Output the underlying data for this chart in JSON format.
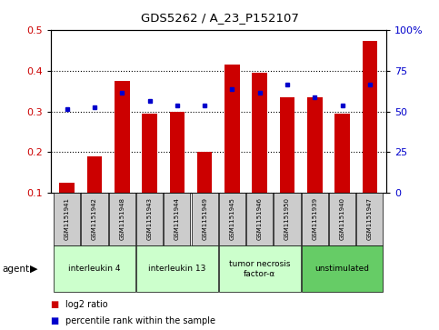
{
  "title": "GDS5262 / A_23_P152107",
  "samples": [
    "GSM1151941",
    "GSM1151942",
    "GSM1151948",
    "GSM1151943",
    "GSM1151944",
    "GSM1151949",
    "GSM1151945",
    "GSM1151946",
    "GSM1151950",
    "GSM1151939",
    "GSM1151940",
    "GSM1151947"
  ],
  "log2_ratio": [
    0.125,
    0.19,
    0.375,
    0.295,
    0.3,
    0.2,
    0.415,
    0.395,
    0.335,
    0.335,
    0.295,
    0.472
  ],
  "percentile_rank": [
    0.305,
    0.31,
    0.345,
    0.325,
    0.315,
    0.315,
    0.355,
    0.345,
    0.365,
    0.335,
    0.315,
    0.365
  ],
  "groups": [
    {
      "label": "interleukin 4",
      "start": 0,
      "end": 3,
      "color": "#ccffcc"
    },
    {
      "label": "interleukin 13",
      "start": 3,
      "end": 6,
      "color": "#ccffcc"
    },
    {
      "label": "tumor necrosis\nfactor-α",
      "start": 6,
      "end": 9,
      "color": "#ccffcc"
    },
    {
      "label": "unstimulated",
      "start": 9,
      "end": 12,
      "color": "#66cc66"
    }
  ],
  "ylim_left": [
    0.1,
    0.5
  ],
  "ylim_right": [
    0,
    100
  ],
  "yticks_left": [
    0.1,
    0.2,
    0.3,
    0.4,
    0.5
  ],
  "yticks_right": [
    0,
    25,
    50,
    75,
    100
  ],
  "bar_color": "#cc0000",
  "dot_color": "#0000cc",
  "bar_width": 0.55,
  "agent_label": "agent",
  "legend_log2": "log2 ratio",
  "legend_pct": "percentile rank within the sample",
  "bg_color": "#ffffff",
  "plot_bg": "#ffffff",
  "grid_color": "#000000",
  "sample_bg": "#cccccc"
}
